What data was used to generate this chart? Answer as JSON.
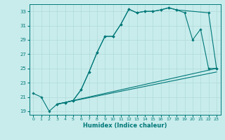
{
  "xlabel": "Humidex (Indice chaleur)",
  "bg_color": "#c8ecec",
  "grid_color": "#b0d8d8",
  "line_color": "#007878",
  "xlim": [
    -0.5,
    23.5
  ],
  "ylim": [
    18.5,
    34.0
  ],
  "xticks": [
    0,
    1,
    2,
    3,
    4,
    5,
    6,
    7,
    8,
    9,
    10,
    11,
    12,
    13,
    14,
    15,
    16,
    17,
    18,
    19,
    20,
    21,
    22,
    23
  ],
  "yticks": [
    19,
    21,
    23,
    25,
    27,
    29,
    31,
    33
  ],
  "curve1": {
    "x": [
      0,
      1,
      2,
      3,
      4,
      5,
      6,
      7,
      8,
      9,
      10,
      11,
      12,
      13,
      14,
      15,
      16,
      17,
      18,
      22,
      23
    ],
    "y": [
      21.5,
      21.0,
      19.0,
      20.0,
      20.2,
      20.5,
      22.0,
      24.5,
      27.2,
      29.5,
      29.5,
      31.2,
      33.3,
      32.8,
      33.0,
      33.0,
      33.2,
      33.5,
      33.2,
      32.8,
      25.0
    ],
    "markers": true
  },
  "curve2": {
    "x": [
      3,
      4,
      5,
      6,
      7,
      8,
      9,
      10,
      11,
      12,
      13,
      14,
      15,
      16,
      17,
      18,
      19,
      20,
      21,
      22,
      23
    ],
    "y": [
      20.0,
      20.2,
      20.5,
      22.0,
      24.5,
      27.2,
      29.5,
      29.5,
      31.2,
      33.3,
      32.8,
      33.0,
      33.0,
      33.2,
      33.5,
      33.2,
      32.8,
      29.0,
      30.5,
      25.0,
      25.0
    ],
    "markers": true
  },
  "curve3": {
    "x": [
      3,
      23
    ],
    "y": [
      20.0,
      25.0
    ],
    "markers": false
  },
  "curve4": {
    "x": [
      3,
      23
    ],
    "y": [
      20.0,
      24.5
    ],
    "markers": false
  }
}
